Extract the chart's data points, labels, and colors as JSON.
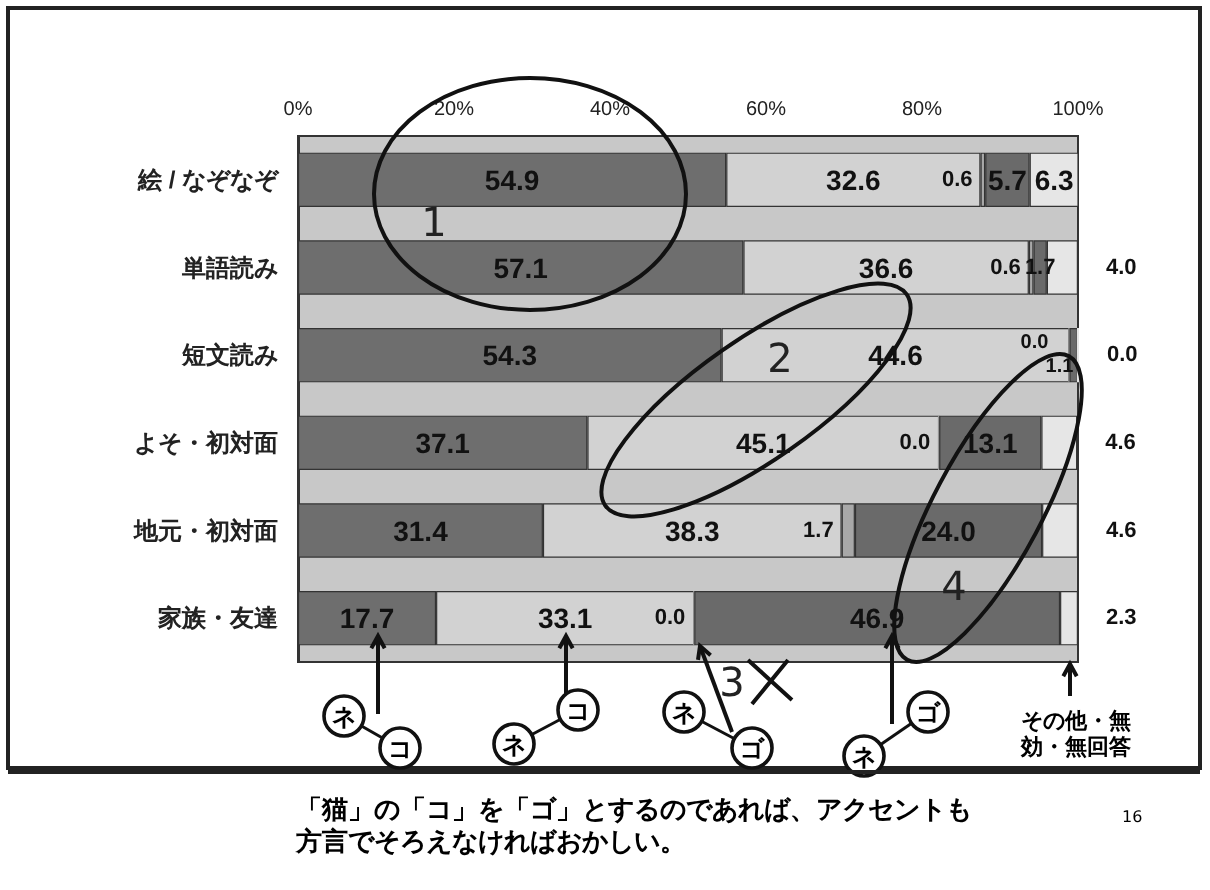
{
  "chart_data": {
    "type": "bar",
    "orientation": "horizontal",
    "stacked": true,
    "categories": [
      "絵 / なぞなぞ",
      "単語読み",
      "短文読み",
      "よそ・初対面",
      "地元・初対面",
      "家族・友達"
    ],
    "series": [
      {
        "color": "#6e6e6e",
        "values": [
          54.9,
          57.1,
          54.3,
          37.1,
          31.4,
          17.7
        ],
        "value_labels": [
          "54.9",
          "57.1",
          "54.3",
          "37.1",
          "31.4",
          "17.7"
        ]
      },
      {
        "color": "#d2d2d2",
        "values": [
          32.6,
          36.6,
          44.6,
          45.1,
          38.3,
          33.1
        ],
        "value_labels": [
          "32.6",
          "36.6",
          "44.6",
          "45.1",
          "38.3",
          "33.1"
        ]
      },
      {
        "color": "#a8a8a8",
        "values": [
          0.6,
          0.6,
          0.0,
          0.0,
          1.7,
          0.0
        ],
        "value_labels": [
          "0.6",
          "0.6",
          "0.0",
          "0.0",
          "1.7",
          "0.0"
        ]
      },
      {
        "color": "#6a6a6a",
        "values": [
          5.7,
          1.7,
          1.1,
          13.1,
          24.0,
          46.9
        ],
        "value_labels": [
          "5.7",
          "1.7",
          "1.1",
          "13.1",
          "24.0",
          "46.9"
        ]
      },
      {
        "color": "#e6e6e6",
        "values": [
          6.3,
          4.0,
          0.0,
          4.6,
          4.6,
          2.3
        ],
        "value_labels": [
          "6.3",
          "4.0",
          "0.0",
          "4.6",
          "4.6",
          "2.3"
        ]
      }
    ],
    "xlim": [
      0,
      100
    ],
    "xticks": [
      {
        "value": 0,
        "label": "0%"
      },
      {
        "value": 20,
        "label": "20%"
      },
      {
        "value": 40,
        "label": "40%"
      },
      {
        "value": 60,
        "label": "60%"
      },
      {
        "value": 80,
        "label": "80%"
      },
      {
        "value": 100,
        "label": "100%"
      }
    ],
    "grid": false,
    "annotations": [
      "1",
      "2",
      "3",
      "4",
      "ネ",
      "コ",
      "ネ",
      "コ",
      "ネ",
      "ゴ",
      "ネ",
      "ゴ",
      "その他・無効・無回答",
      "「猫」の「コ」を「ゴ」とするのであれば、アクセントも方言でそろえなければおかしい。",
      "16"
    ]
  }
}
